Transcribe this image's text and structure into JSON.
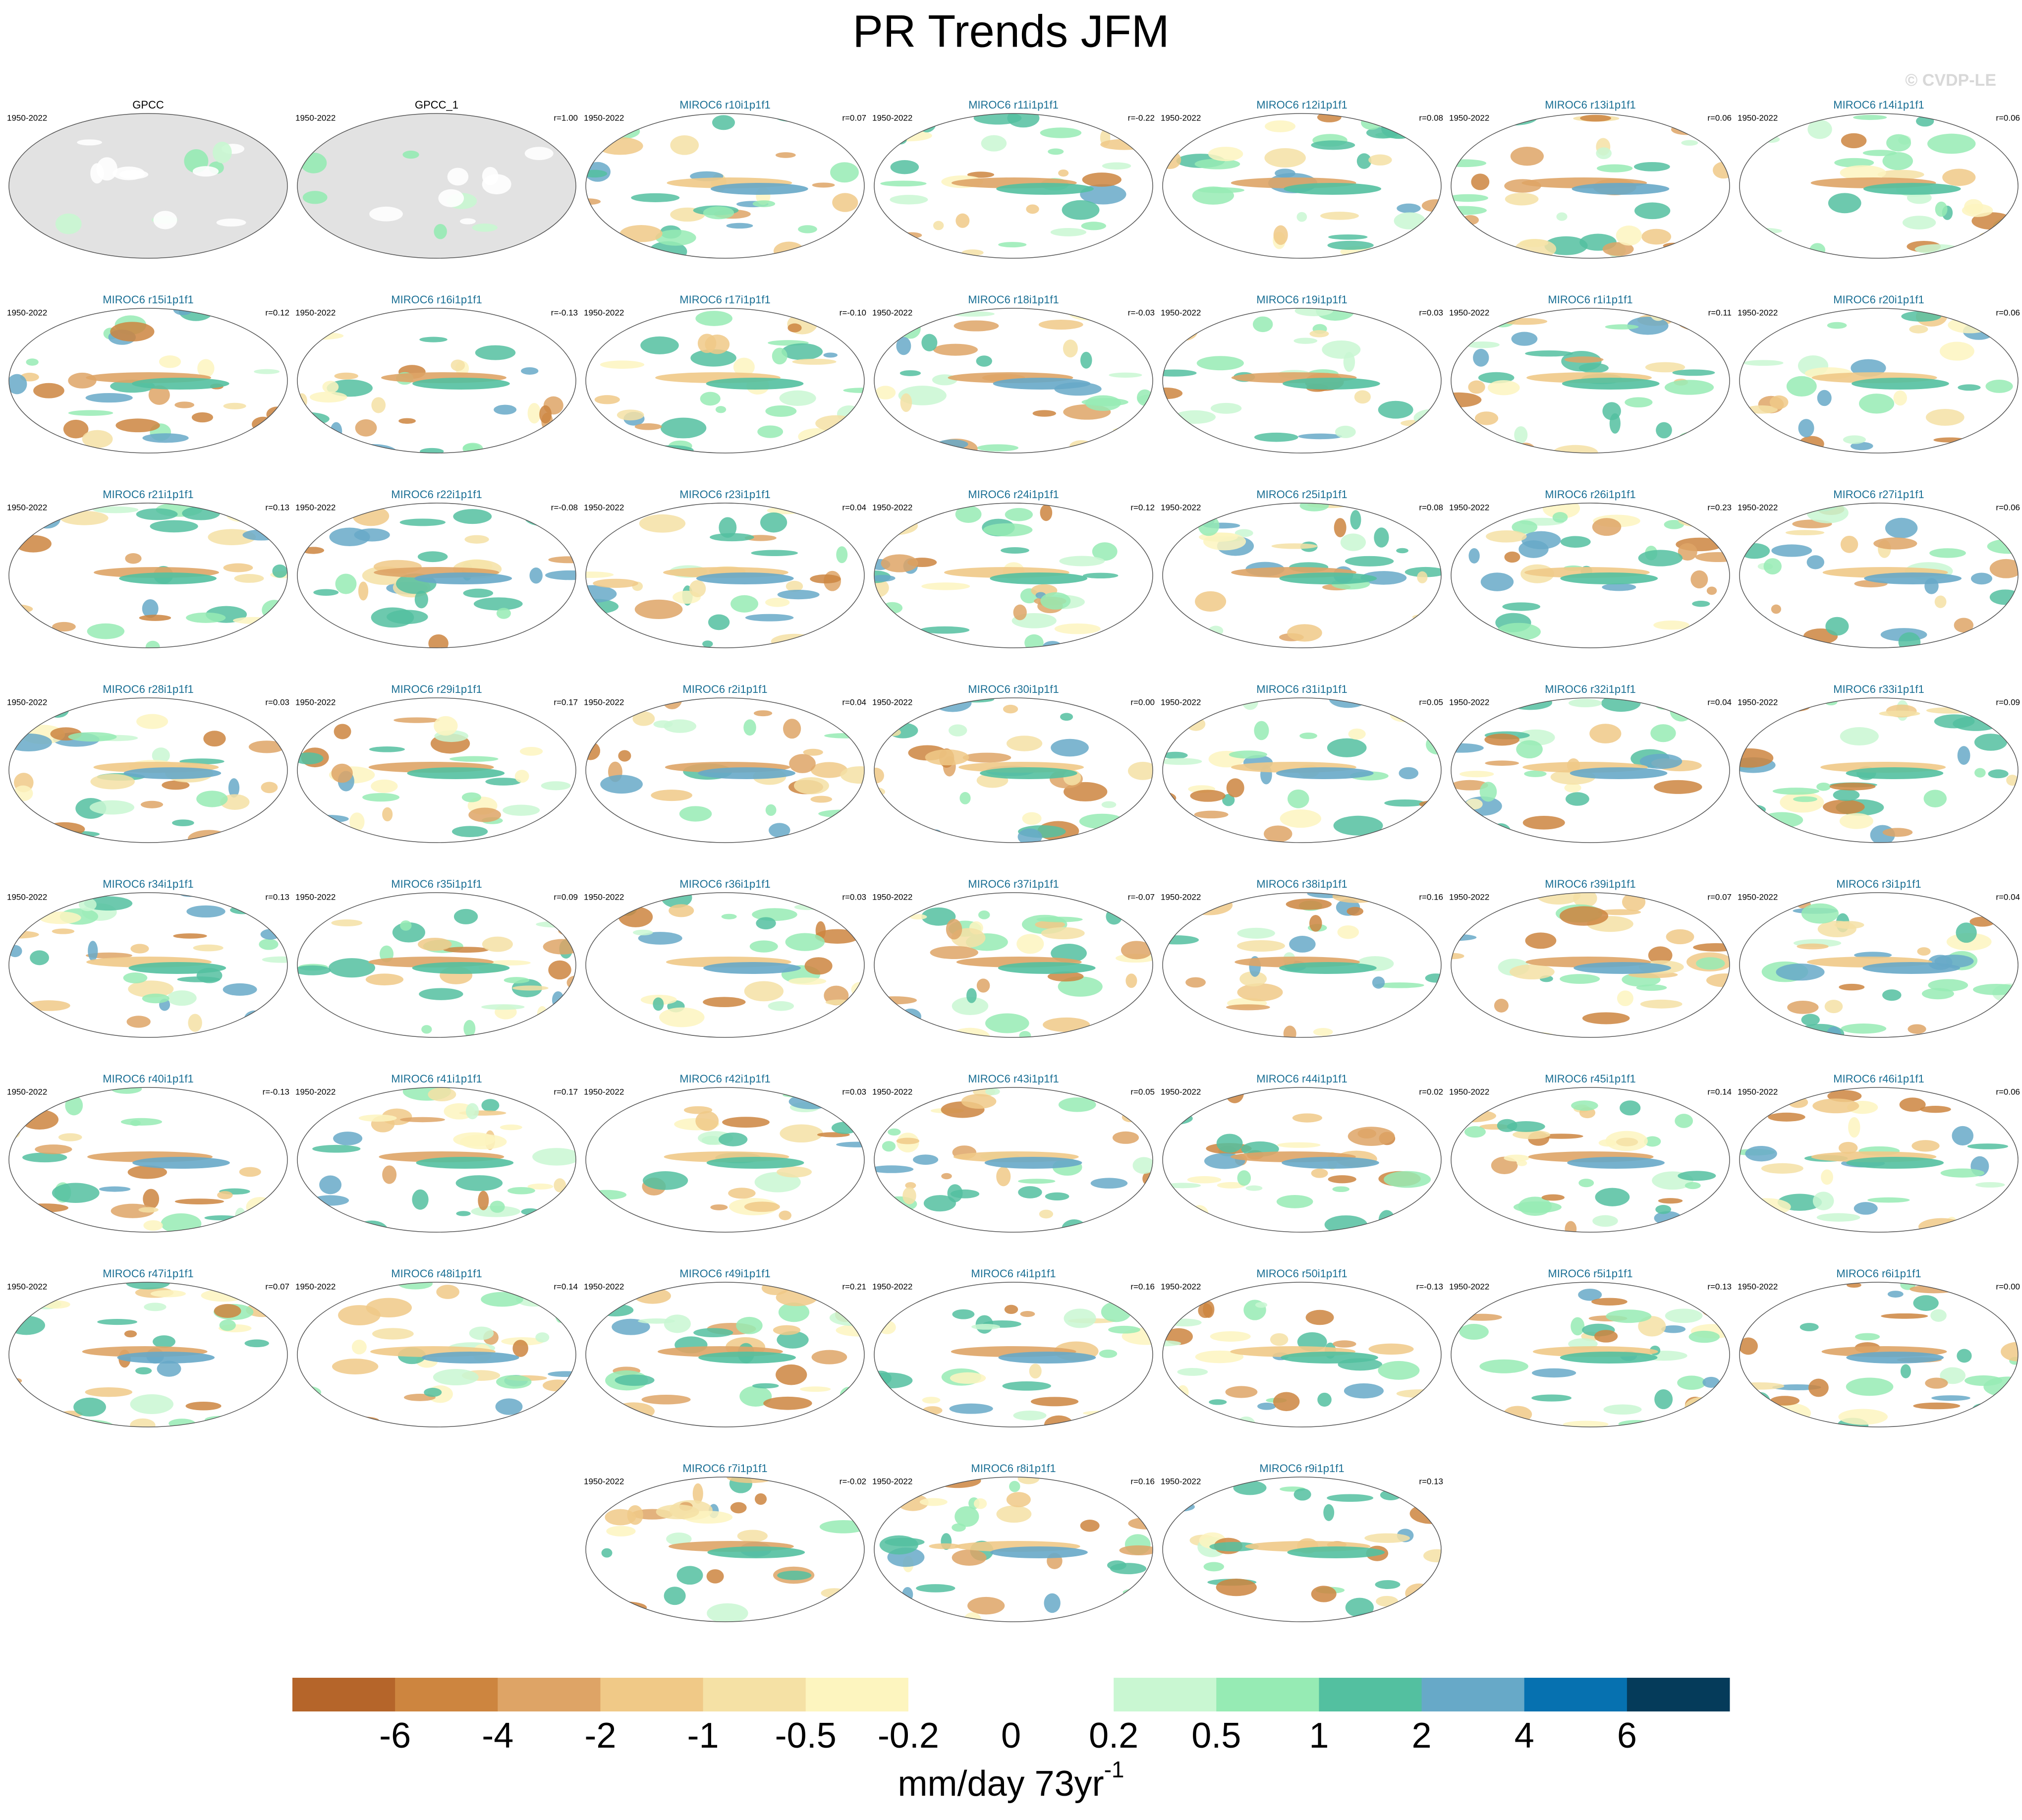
{
  "header": {
    "title": "PR Trends JFM",
    "watermark": "© CVDP-LE"
  },
  "panels": [
    {
      "title": "GPCC",
      "period": "1950-2022"
    },
    {
      "title": "GPCC_1",
      "period": "1950-2022",
      "r": "r=1.00"
    },
    {
      "title": "MIROC6 r10i1p1f1",
      "period": "1950-2022",
      "r": "r=0.07"
    },
    {
      "title": "MIROC6 r11i1p1f1",
      "period": "1950-2022",
      "r": "r=-0.22"
    },
    {
      "title": "MIROC6 r12i1p1f1",
      "period": "1950-2022",
      "r": "r=0.08"
    },
    {
      "title": "MIROC6 r13i1p1f1",
      "period": "1950-2022",
      "r": "r=0.06"
    },
    {
      "title": "MIROC6 r14i1p1f1",
      "period": "1950-2022",
      "r": "r=0.06"
    },
    {
      "title": "MIROC6 r15i1p1f1",
      "period": "1950-2022",
      "r": "r=0.12"
    },
    {
      "title": "MIROC6 r16i1p1f1",
      "period": "1950-2022",
      "r": "r=-0.13"
    },
    {
      "title": "MIROC6 r17i1p1f1",
      "period": "1950-2022",
      "r": "r=-0.10"
    },
    {
      "title": "MIROC6 r18i1p1f1",
      "period": "1950-2022",
      "r": "r=-0.03"
    },
    {
      "title": "MIROC6 r19i1p1f1",
      "period": "1950-2022",
      "r": "r=0.03"
    },
    {
      "title": "MIROC6 r1i1p1f1",
      "period": "1950-2022",
      "r": "r=0.11"
    },
    {
      "title": "MIROC6 r20i1p1f1",
      "period": "1950-2022",
      "r": "r=0.06"
    },
    {
      "title": "MIROC6 r21i1p1f1",
      "period": "1950-2022",
      "r": "r=0.13"
    },
    {
      "title": "MIROC6 r22i1p1f1",
      "period": "1950-2022",
      "r": "r=-0.08"
    },
    {
      "title": "MIROC6 r23i1p1f1",
      "period": "1950-2022",
      "r": "r=0.04"
    },
    {
      "title": "MIROC6 r24i1p1f1",
      "period": "1950-2022",
      "r": "r=0.12"
    },
    {
      "title": "MIROC6 r25i1p1f1",
      "period": "1950-2022",
      "r": "r=0.08"
    },
    {
      "title": "MIROC6 r26i1p1f1",
      "period": "1950-2022",
      "r": "r=0.23"
    },
    {
      "title": "MIROC6 r27i1p1f1",
      "period": "1950-2022",
      "r": "r=0.06"
    },
    {
      "title": "MIROC6 r28i1p1f1",
      "period": "1950-2022",
      "r": "r=0.03"
    },
    {
      "title": "MIROC6 r29i1p1f1",
      "period": "1950-2022",
      "r": "r=0.17"
    },
    {
      "title": "MIROC6 r2i1p1f1",
      "period": "1950-2022",
      "r": "r=0.04"
    },
    {
      "title": "MIROC6 r30i1p1f1",
      "period": "1950-2022",
      "r": "r=0.00"
    },
    {
      "title": "MIROC6 r31i1p1f1",
      "period": "1950-2022",
      "r": "r=0.05"
    },
    {
      "title": "MIROC6 r32i1p1f1",
      "period": "1950-2022",
      "r": "r=0.04"
    },
    {
      "title": "MIROC6 r33i1p1f1",
      "period": "1950-2022",
      "r": "r=0.09"
    },
    {
      "title": "MIROC6 r34i1p1f1",
      "period": "1950-2022",
      "r": "r=0.13"
    },
    {
      "title": "MIROC6 r35i1p1f1",
      "period": "1950-2022",
      "r": "r=0.09"
    },
    {
      "title": "MIROC6 r36i1p1f1",
      "period": "1950-2022",
      "r": "r=0.03"
    },
    {
      "title": "MIROC6 r37i1p1f1",
      "period": "1950-2022",
      "r": "r=-0.07"
    },
    {
      "title": "MIROC6 r38i1p1f1",
      "period": "1950-2022",
      "r": "r=0.16"
    },
    {
      "title": "MIROC6 r39i1p1f1",
      "period": "1950-2022",
      "r": "r=0.07"
    },
    {
      "title": "MIROC6 r3i1p1f1",
      "period": "1950-2022",
      "r": "r=0.04"
    },
    {
      "title": "MIROC6 r40i1p1f1",
      "period": "1950-2022",
      "r": "r=-0.13"
    },
    {
      "title": "MIROC6 r41i1p1f1",
      "period": "1950-2022",
      "r": "r=0.17"
    },
    {
      "title": "MIROC6 r42i1p1f1",
      "period": "1950-2022",
      "r": "r=0.03"
    },
    {
      "title": "MIROC6 r43i1p1f1",
      "period": "1950-2022",
      "r": "r=0.05"
    },
    {
      "title": "MIROC6 r44i1p1f1",
      "period": "1950-2022",
      "r": "r=0.02"
    },
    {
      "title": "MIROC6 r45i1p1f1",
      "period": "1950-2022",
      "r": "r=0.14"
    },
    {
      "title": "MIROC6 r46i1p1f1",
      "period": "1950-2022",
      "r": "r=0.06"
    },
    {
      "title": "MIROC6 r47i1p1f1",
      "period": "1950-2022",
      "r": "r=0.07"
    },
    {
      "title": "MIROC6 r48i1p1f1",
      "period": "1950-2022",
      "r": "r=0.14"
    },
    {
      "title": "MIROC6 r49i1p1f1",
      "period": "1950-2022",
      "r": "r=0.21"
    },
    {
      "title": "MIROC6 r4i1p1f1",
      "period": "1950-2022",
      "r": "r=0.16"
    },
    {
      "title": "MIROC6 r50i1p1f1",
      "period": "1950-2022",
      "r": "r=-0.13"
    },
    {
      "title": "MIROC6 r5i1p1f1",
      "period": "1950-2022",
      "r": "r=0.13"
    },
    {
      "title": "MIROC6 r6i1p1f1",
      "period": "1950-2022",
      "r": "r=0.00"
    },
    {
      "title": "MIROC6 r7i1p1f1",
      "period": "1950-2022",
      "r": "r=-0.02"
    },
    {
      "title": "MIROC6 r8i1p1f1",
      "period": "1950-2022",
      "r": "r=0.16"
    },
    {
      "title": "MIROC6 r9i1p1f1",
      "period": "1950-2022",
      "r": "r=0.13"
    }
  ],
  "colorbar": {
    "levels": [
      -6,
      -4,
      -2,
      -1,
      -0.5,
      -0.2,
      0,
      0.2,
      0.5,
      1,
      2,
      4,
      6
    ],
    "colors": [
      "#b5652a",
      "#cd853f",
      "#dea466",
      "#f0c987",
      "#f5e1a5",
      "#fdf5bf",
      "#ffffff",
      "#ffffff",
      "#c9f7d2",
      "#96ebb4",
      "#53c0a0",
      "#67a9c8",
      "#0671b0",
      "#053b5a"
    ],
    "units": "mm/day 73yr",
    "units_superscript": "-1"
  }
}
